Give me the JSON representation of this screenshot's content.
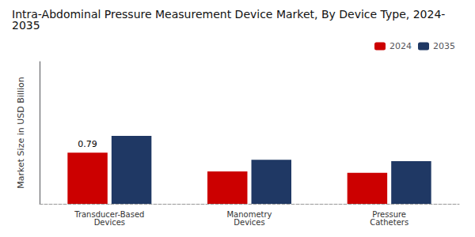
{
  "chart_data": {
    "type": "bar",
    "title": "Intra-Abdominal Pressure Measurement Device Market, By Device Type, 2024-\n2035",
    "ylabel": "Market Size in USD Billion",
    "categories": [
      "Transducer-Based\nDevices",
      "Manometry\nDevices",
      "Pressure\nCatheters"
    ],
    "series": [
      {
        "name": "2024",
        "color": "#cc0000",
        "values": [
          0.79,
          0.5,
          0.48
        ]
      },
      {
        "name": "2035",
        "color": "#1f3864",
        "values": [
          1.05,
          0.68,
          0.66
        ]
      }
    ],
    "annotations": [
      {
        "text": "0.79",
        "series": "2024",
        "category": "Transducer-Based\nDevices"
      }
    ],
    "ylim": [
      0,
      2.2
    ],
    "yticks": [],
    "tick_labels": "x",
    "grid": false,
    "legend": "upper right"
  }
}
